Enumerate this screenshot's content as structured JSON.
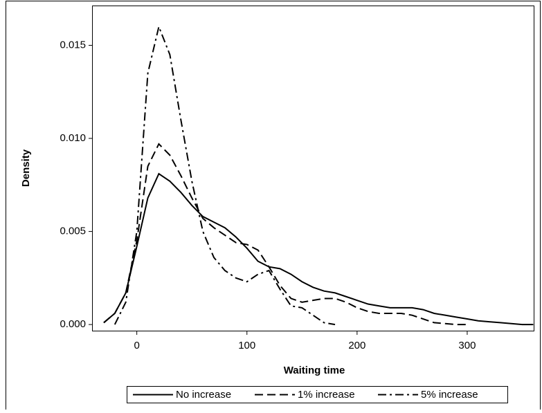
{
  "chart_data": {
    "type": "line",
    "x_label": "Waiting time",
    "y_label": "Density",
    "x": [
      -40,
      -30,
      -20,
      -10,
      0,
      10,
      20,
      30,
      40,
      50,
      60,
      70,
      80,
      90,
      100,
      110,
      120,
      130,
      140,
      150,
      160,
      170,
      180,
      190,
      200,
      210,
      220,
      230,
      240,
      250,
      260,
      270,
      280,
      290,
      300,
      310,
      320,
      330,
      340,
      350,
      360
    ],
    "series": [
      {
        "name": "No increase",
        "color": "#000000",
        "dash": "solid",
        "values": [
          null,
          0.0001,
          0.0006,
          0.0017,
          0.0042,
          0.0068,
          0.0081,
          0.0077,
          0.0071,
          0.0064,
          0.0058,
          0.0055,
          0.0052,
          0.0047,
          0.0041,
          0.0034,
          0.0031,
          0.003,
          0.0027,
          0.0023,
          0.002,
          0.0018,
          0.0017,
          0.0015,
          0.0013,
          0.0011,
          0.001,
          0.0009,
          0.0009,
          0.0009,
          0.0008,
          0.0006,
          0.0005,
          0.0004,
          0.0003,
          0.0002,
          0.00015,
          0.0001,
          5e-05,
          0,
          0
        ]
      },
      {
        "name": "1% increase",
        "color": "#000000",
        "dash": "dashed",
        "values": [
          null,
          0.0001,
          0.0006,
          0.0017,
          0.0045,
          0.0085,
          0.0097,
          0.0091,
          0.008,
          0.0068,
          0.0057,
          0.0052,
          0.0048,
          0.0044,
          0.0043,
          0.004,
          0.0031,
          0.0021,
          0.0014,
          0.0012,
          0.0013,
          0.0014,
          0.0014,
          0.0012,
          0.0009,
          0.0007,
          0.0006,
          0.0006,
          0.0006,
          0.0005,
          0.0003,
          0.0001,
          5e-05,
          0,
          0,
          null,
          null,
          null,
          null,
          null,
          null
        ]
      },
      {
        "name": "5% increase",
        "color": "#000000",
        "dash": "dashdot",
        "values": [
          null,
          null,
          0,
          0.0012,
          0.005,
          0.0135,
          0.016,
          0.0145,
          0.011,
          0.0077,
          0.005,
          0.0036,
          0.0029,
          0.0025,
          0.0023,
          0.0027,
          0.0029,
          0.0019,
          0.001,
          0.0009,
          0.0005,
          0.0001,
          0,
          null,
          null,
          null,
          null,
          null,
          null,
          null,
          null,
          null,
          null,
          null,
          null,
          null,
          null,
          null,
          null,
          null,
          null
        ]
      }
    ],
    "xlim": [
      -40,
      361
    ],
    "xticks": [
      0,
      100,
      200,
      300
    ],
    "ylim": [
      -0.00033,
      0.0171
    ],
    "yticks": [
      {
        "value": 0,
        "label": "0.000"
      },
      {
        "value": 0.005,
        "label": "0.005"
      },
      {
        "value": 0.01,
        "label": "0.010"
      },
      {
        "value": 0.015,
        "label": "0.015"
      }
    ],
    "legend": "bottom"
  }
}
